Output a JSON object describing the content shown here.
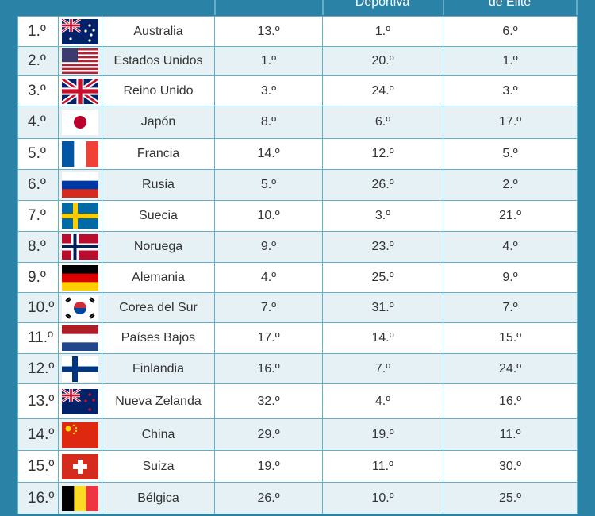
{
  "header": {
    "columns": [
      "Deportiva",
      "de Élite"
    ]
  },
  "table": {
    "rows": [
      [
        "1.º",
        "Australia",
        "13.º",
        "1.º",
        "6.º"
      ],
      [
        "2.º",
        "Estados Unidos",
        "1.º",
        "20.º",
        "1.º"
      ],
      [
        "3.º",
        "Reino Unido",
        "3.º",
        "24.º",
        "3.º"
      ],
      [
        "4.º",
        "Japón",
        "8.º",
        "6.º",
        "17.º"
      ],
      [
        "5.º",
        "Francia",
        "14.º",
        "12.º",
        "5.º"
      ],
      [
        "6.º",
        "Rusia",
        "5.º",
        "26.º",
        "2.º"
      ],
      [
        "7.º",
        "Suecia",
        "10.º",
        "3.º",
        "21.º"
      ],
      [
        "8.º",
        "Noruega",
        "9.º",
        "23.º",
        "4.º"
      ],
      [
        "9.º",
        "Alemania",
        "4.º",
        "25.º",
        "9.º"
      ],
      [
        "10.º",
        "Corea del Sur",
        "7.º",
        "31.º",
        "7.º"
      ],
      [
        "11.º",
        "Países Bajos",
        "17.º",
        "14.º",
        "15.º"
      ],
      [
        "12.º",
        "Finlandia",
        "16.º",
        "7.º",
        "24.º"
      ],
      [
        "13.º",
        "Nueva Zelanda",
        "32.º",
        "4.º",
        "16.º"
      ],
      [
        "14.º",
        "China",
        "29.º",
        "19.º",
        "11.º"
      ],
      [
        "15.º",
        "Suiza",
        "19.º",
        "11.º",
        "30.º"
      ],
      [
        "16.º",
        "Bélgica",
        "26.º",
        "10.º",
        "25.º"
      ]
    ]
  }
}
